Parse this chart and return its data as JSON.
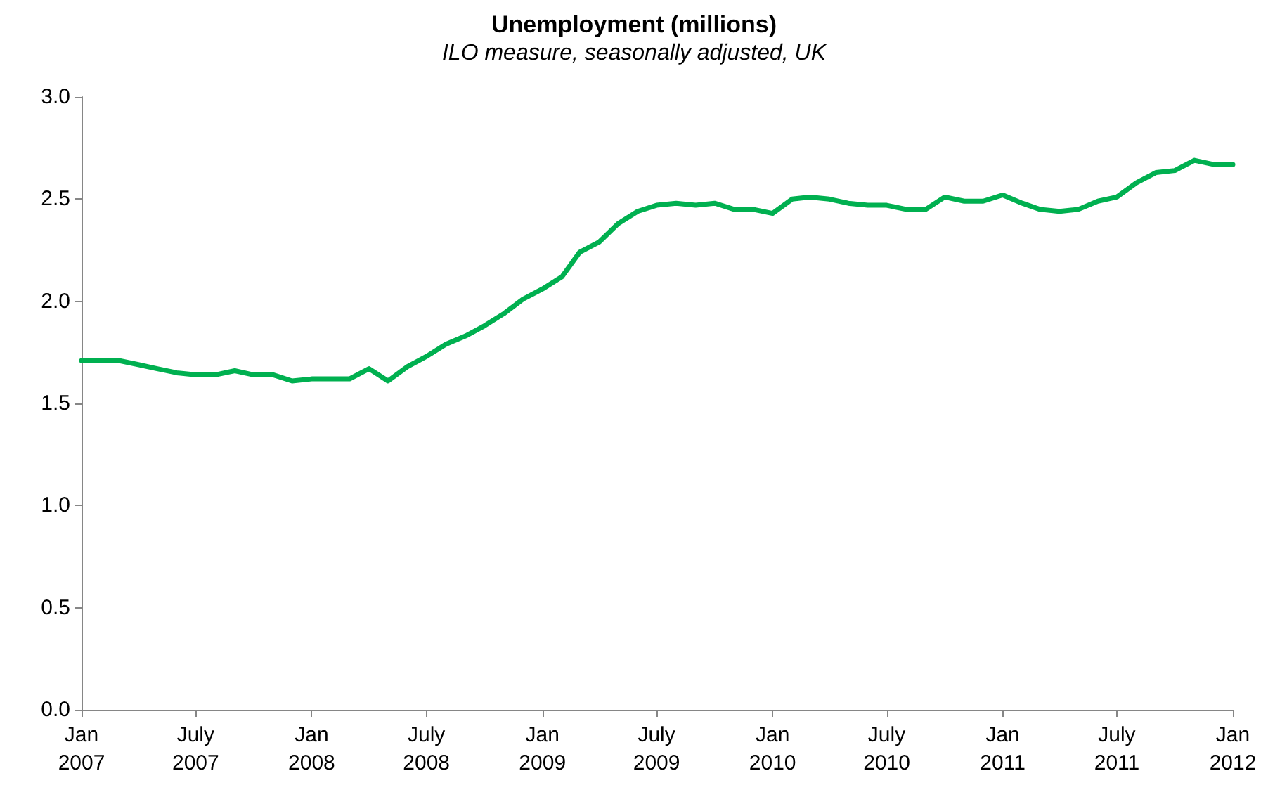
{
  "chart_data": {
    "type": "line",
    "title": "Unemployment (millions)",
    "subtitle": "ILO measure, seasonally adjusted, UK",
    "x": [
      "2007-01",
      "2007-02",
      "2007-03",
      "2007-04",
      "2007-05",
      "2007-06",
      "2007-07",
      "2007-08",
      "2007-09",
      "2007-10",
      "2007-11",
      "2007-12",
      "2008-01",
      "2008-02",
      "2008-03",
      "2008-04",
      "2008-05",
      "2008-06",
      "2008-07",
      "2008-08",
      "2008-09",
      "2008-10",
      "2008-11",
      "2008-12",
      "2009-01",
      "2009-02",
      "2009-03",
      "2009-04",
      "2009-05",
      "2009-06",
      "2009-07",
      "2009-08",
      "2009-09",
      "2009-10",
      "2009-11",
      "2009-12",
      "2010-01",
      "2010-02",
      "2010-03",
      "2010-04",
      "2010-05",
      "2010-06",
      "2010-07",
      "2010-08",
      "2010-09",
      "2010-10",
      "2010-11",
      "2010-12",
      "2011-01",
      "2011-02",
      "2011-03",
      "2011-04",
      "2011-05",
      "2011-06",
      "2011-07",
      "2011-08",
      "2011-09",
      "2011-10",
      "2011-11",
      "2011-12",
      "2012-01"
    ],
    "series": [
      {
        "color": "#00b050",
        "values": [
          1.71,
          1.71,
          1.71,
          1.69,
          1.67,
          1.65,
          1.64,
          1.64,
          1.66,
          1.64,
          1.64,
          1.61,
          1.62,
          1.62,
          1.62,
          1.67,
          1.61,
          1.68,
          1.73,
          1.79,
          1.83,
          1.88,
          1.94,
          2.01,
          2.06,
          2.12,
          2.24,
          2.29,
          2.38,
          2.44,
          2.47,
          2.48,
          2.47,
          2.48,
          2.45,
          2.45,
          2.43,
          2.5,
          2.51,
          2.5,
          2.48,
          2.47,
          2.47,
          2.45,
          2.45,
          2.51,
          2.49,
          2.49,
          2.52,
          2.48,
          2.45,
          2.44,
          2.45,
          2.49,
          2.51,
          2.58,
          2.63,
          2.64,
          2.69,
          2.67,
          2.67
        ]
      }
    ],
    "xlim": [
      "2007-01",
      "2012-01"
    ],
    "xticks": [
      {
        "value": "2007-01",
        "label": "Jan\n2007"
      },
      {
        "value": "2007-07",
        "label": "July\n2007"
      },
      {
        "value": "2008-01",
        "label": "Jan\n2008"
      },
      {
        "value": "2008-07",
        "label": "July\n2008"
      },
      {
        "value": "2009-01",
        "label": "Jan\n2009"
      },
      {
        "value": "2009-07",
        "label": "July\n2009"
      },
      {
        "value": "2010-01",
        "label": "Jan\n2010"
      },
      {
        "value": "2010-07",
        "label": "July\n2010"
      },
      {
        "value": "2011-01",
        "label": "Jan\n2011"
      },
      {
        "value": "2011-07",
        "label": "July\n2011"
      },
      {
        "value": "2012-01",
        "label": "Jan\n2012"
      }
    ],
    "ylim": [
      0,
      3
    ],
    "yticks": [
      {
        "value": 0,
        "label": "0.0"
      },
      0.5,
      {
        "value": 1,
        "label": "1.0"
      },
      1.5,
      {
        "value": 2,
        "label": "2.0"
      },
      2.5,
      {
        "value": 3,
        "label": "3.0"
      }
    ],
    "grid": false,
    "marker": "none",
    "line_style": "solid"
  }
}
